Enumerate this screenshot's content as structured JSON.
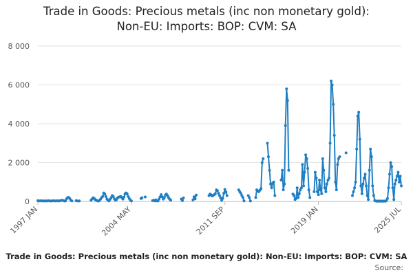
{
  "chart_data": {
    "type": "line",
    "title_lines": [
      "Trade in Goods: Precious metals (inc non monetary gold):",
      "Non-EU: Imports: BOP: CVM: SA"
    ],
    "caption": "Trade in Goods: Precious metals (inc non monetary gold): Non-EU: Imports: BOP: CVM: SA",
    "source_label": "Source:",
    "xlabel": "",
    "ylabel": "",
    "x_tick_labels": [
      "1997 JAN",
      "2004 MAY",
      "2011 SEP",
      "2019 JAN",
      "2025 JUL"
    ],
    "y_tick_labels": [
      "0",
      "2 000",
      "4 000",
      "6 000",
      "8 000"
    ],
    "ylim": [
      0,
      8000
    ],
    "y_ticks": [
      0,
      2000,
      4000,
      6000,
      8000
    ],
    "x_start": "1997-01",
    "x_end": "2025-07",
    "grid": true,
    "series": [
      {
        "name": "Trade in Goods: Precious metals (inc non monetary gold): Non-EU: Imports: BOP: CVM: SA",
        "color": "#1f7fc4",
        "points": [
          [
            "1997-01",
            40
          ],
          [
            "1997-02",
            30
          ],
          [
            "1997-03",
            25
          ],
          [
            "1997-04",
            35
          ],
          [
            "1997-05",
            30
          ],
          [
            "1997-06",
            25
          ],
          [
            "1997-07",
            30
          ],
          [
            "1997-08",
            20
          ],
          [
            "1997-09",
            30
          ],
          [
            "1997-10",
            25
          ],
          [
            "1997-11",
            35
          ],
          [
            "1997-12",
            30
          ],
          [
            "1998-01",
            20
          ],
          [
            "1998-02",
            30
          ],
          [
            "1998-03",
            25
          ],
          [
            "1998-04",
            40
          ],
          [
            "1998-05",
            30
          ],
          [
            "1998-06",
            20
          ],
          [
            "1998-07",
            35
          ],
          [
            "1998-08",
            30
          ],
          [
            "1998-09",
            25
          ],
          [
            "1998-10",
            40
          ],
          [
            "1998-11",
            50
          ],
          [
            "1998-12",
            60
          ],
          [
            "1999-01",
            40
          ],
          [
            "1999-02",
            30
          ],
          [
            "1999-03",
            20
          ],
          [
            "1999-04",
            130
          ],
          [
            "1999-05",
            200
          ],
          [
            "1999-06",
            210
          ],
          [
            "1999-07",
            150
          ],
          [
            "1999-08",
            60
          ],
          [
            "1999-09",
            30
          ],
          [
            "2000-01",
            40
          ],
          [
            "2000-02",
            30
          ],
          [
            "2000-03",
            20
          ],
          [
            "2000-04",
            30
          ],
          [
            "2001-03",
            60
          ],
          [
            "2001-04",
            120
          ],
          [
            "2001-05",
            190
          ],
          [
            "2001-06",
            160
          ],
          [
            "2001-07",
            100
          ],
          [
            "2001-08",
            60
          ],
          [
            "2001-09",
            30
          ],
          [
            "2001-10",
            20
          ],
          [
            "2001-11",
            50
          ],
          [
            "2001-12",
            120
          ],
          [
            "2002-01",
            200
          ],
          [
            "2002-02",
            260
          ],
          [
            "2002-03",
            440
          ],
          [
            "2002-04",
            380
          ],
          [
            "2002-05",
            250
          ],
          [
            "2002-06",
            120
          ],
          [
            "2002-07",
            60
          ],
          [
            "2002-08",
            30
          ],
          [
            "2002-09",
            110
          ],
          [
            "2002-10",
            200
          ],
          [
            "2002-11",
            300
          ],
          [
            "2002-12",
            250
          ],
          [
            "2003-01",
            130
          ],
          [
            "2003-02",
            60
          ],
          [
            "2003-03",
            100
          ],
          [
            "2003-04",
            180
          ],
          [
            "2003-05",
            220
          ],
          [
            "2003-06",
            240
          ],
          [
            "2003-07",
            260
          ],
          [
            "2003-08",
            200
          ],
          [
            "2003-09",
            120
          ],
          [
            "2003-10",
            220
          ],
          [
            "2003-11",
            380
          ],
          [
            "2003-12",
            440
          ],
          [
            "2004-01",
            400
          ],
          [
            "2004-02",
            260
          ],
          [
            "2004-03",
            150
          ],
          [
            "2004-04",
            70
          ],
          [
            "2004-05",
            30
          ],
          [
            "2005-02",
            150
          ],
          [
            "2005-03",
            190
          ],
          [
            "2005-06",
            230
          ],
          [
            "2006-01",
            40
          ],
          [
            "2006-02",
            60
          ],
          [
            "2006-03",
            30
          ],
          [
            "2006-04",
            80
          ],
          [
            "2006-05",
            30
          ],
          [
            "2006-06",
            20
          ],
          [
            "2006-07",
            120
          ],
          [
            "2006-08",
            230
          ],
          [
            "2006-09",
            350
          ],
          [
            "2006-10",
            240
          ],
          [
            "2006-11",
            120
          ],
          [
            "2006-12",
            200
          ],
          [
            "2007-01",
            330
          ],
          [
            "2007-02",
            380
          ],
          [
            "2007-03",
            300
          ],
          [
            "2007-04",
            200
          ],
          [
            "2007-05",
            120
          ],
          [
            "2007-06",
            60
          ],
          [
            "2008-04",
            120
          ],
          [
            "2008-05",
            40
          ],
          [
            "2008-06",
            180
          ],
          [
            "2009-03",
            80
          ],
          [
            "2009-04",
            240
          ],
          [
            "2009-05",
            130
          ],
          [
            "2009-06",
            330
          ],
          [
            "2010-06",
            300
          ],
          [
            "2010-07",
            380
          ],
          [
            "2010-08",
            340
          ],
          [
            "2010-09",
            280
          ],
          [
            "2010-10",
            310
          ],
          [
            "2010-11",
            350
          ],
          [
            "2010-12",
            400
          ],
          [
            "2011-01",
            600
          ],
          [
            "2011-02",
            560
          ],
          [
            "2011-03",
            420
          ],
          [
            "2011-04",
            300
          ],
          [
            "2011-05",
            180
          ],
          [
            "2011-06",
            60
          ],
          [
            "2011-07",
            160
          ],
          [
            "2011-08",
            420
          ],
          [
            "2011-09",
            620
          ],
          [
            "2011-10",
            480
          ],
          [
            "2011-11",
            300
          ],
          [
            "2012-10",
            600
          ],
          [
            "2012-11",
            500
          ],
          [
            "2012-12",
            420
          ],
          [
            "2013-01",
            300
          ],
          [
            "2013-02",
            200
          ],
          [
            "2013-03",
            30
          ],
          [
            "2013-07",
            300
          ],
          [
            "2013-08",
            200
          ],
          [
            "2013-09",
            20
          ],
          [
            "2014-02",
            200
          ],
          [
            "2014-03",
            600
          ],
          [
            "2014-04",
            540
          ],
          [
            "2014-05",
            500
          ],
          [
            "2014-06",
            580
          ],
          [
            "2014-07",
            660
          ],
          [
            "2014-08",
            2000
          ],
          [
            "2014-09",
            2200
          ],
          [
            "2015-01",
            3000
          ],
          [
            "2015-02",
            2300
          ],
          [
            "2015-03",
            1600
          ],
          [
            "2015-04",
            900
          ],
          [
            "2015-05",
            700
          ],
          [
            "2015-06",
            950
          ],
          [
            "2015-07",
            1000
          ],
          [
            "2015-08",
            300
          ],
          [
            "2016-02",
            1100
          ],
          [
            "2016-03",
            1600
          ],
          [
            "2016-04",
            600
          ],
          [
            "2016-05",
            900
          ],
          [
            "2016-06",
            3900
          ],
          [
            "2016-07",
            5800
          ],
          [
            "2016-08",
            5200
          ],
          [
            "2016-09",
            1600
          ],
          [
            "2017-01",
            380
          ],
          [
            "2017-02",
            300
          ],
          [
            "2017-03",
            100
          ],
          [
            "2017-04",
            150
          ],
          [
            "2017-05",
            700
          ],
          [
            "2017-06",
            200
          ],
          [
            "2017-07",
            400
          ],
          [
            "2017-08",
            600
          ],
          [
            "2017-09",
            700
          ],
          [
            "2017-10",
            1900
          ],
          [
            "2017-11",
            800
          ],
          [
            "2017-12",
            1500
          ],
          [
            "2018-01",
            2400
          ],
          [
            "2018-02",
            2200
          ],
          [
            "2018-03",
            1700
          ],
          [
            "2018-04",
            600
          ],
          [
            "2018-05",
            200
          ],
          [
            "2018-09",
            500
          ],
          [
            "2018-10",
            1500
          ],
          [
            "2018-11",
            1200
          ],
          [
            "2018-12",
            500
          ],
          [
            "2019-01",
            350
          ],
          [
            "2019-02",
            1100
          ],
          [
            "2019-03",
            600
          ],
          [
            "2019-04",
            400
          ],
          [
            "2019-05",
            2200
          ],
          [
            "2019-06",
            1600
          ],
          [
            "2019-07",
            700
          ],
          [
            "2019-08",
            500
          ],
          [
            "2019-09",
            900
          ],
          [
            "2019-10",
            1100
          ],
          [
            "2019-11",
            1200
          ],
          [
            "2019-12",
            3000
          ],
          [
            "2020-01",
            6200
          ],
          [
            "2020-02",
            6000
          ],
          [
            "2020-03",
            5000
          ],
          [
            "2020-04",
            3400
          ],
          [
            "2020-05",
            1000
          ],
          [
            "2020-06",
            600
          ],
          [
            "2020-07",
            1900
          ],
          [
            "2020-08",
            2200
          ],
          [
            "2020-09",
            2300
          ],
          [
            "2021-03",
            2500
          ],
          [
            "2021-09",
            300
          ],
          [
            "2021-10",
            500
          ],
          [
            "2021-11",
            700
          ],
          [
            "2021-12",
            1000
          ],
          [
            "2022-01",
            2700
          ],
          [
            "2022-02",
            4400
          ],
          [
            "2022-03",
            4600
          ],
          [
            "2022-04",
            3200
          ],
          [
            "2022-05",
            800
          ],
          [
            "2022-06",
            400
          ],
          [
            "2022-07",
            900
          ],
          [
            "2022-08",
            1200
          ],
          [
            "2022-09",
            1400
          ],
          [
            "2022-10",
            800
          ],
          [
            "2022-11",
            300
          ],
          [
            "2022-12",
            100
          ],
          [
            "2023-01",
            1600
          ],
          [
            "2023-02",
            2700
          ],
          [
            "2023-03",
            2300
          ],
          [
            "2023-04",
            800
          ],
          [
            "2023-05",
            300
          ],
          [
            "2023-06",
            50
          ],
          [
            "2023-07",
            20
          ],
          [
            "2023-08",
            10
          ],
          [
            "2023-09",
            20
          ],
          [
            "2023-10",
            10
          ],
          [
            "2023-11",
            20
          ],
          [
            "2023-12",
            10
          ],
          [
            "2024-01",
            20
          ],
          [
            "2024-02",
            10
          ],
          [
            "2024-03",
            20
          ],
          [
            "2024-04",
            10
          ],
          [
            "2024-05",
            50
          ],
          [
            "2024-06",
            150
          ],
          [
            "2024-07",
            700
          ],
          [
            "2024-08",
            1400
          ],
          [
            "2024-09",
            2000
          ],
          [
            "2024-10",
            1800
          ],
          [
            "2024-11",
            700
          ],
          [
            "2024-12",
            100
          ],
          [
            "2025-01",
            900
          ],
          [
            "2025-02",
            1100
          ],
          [
            "2025-03",
            1300
          ],
          [
            "2025-04",
            1500
          ],
          [
            "2025-05",
            1000
          ],
          [
            "2025-06",
            1300
          ],
          [
            "2025-07",
            800
          ]
        ]
      }
    ]
  }
}
